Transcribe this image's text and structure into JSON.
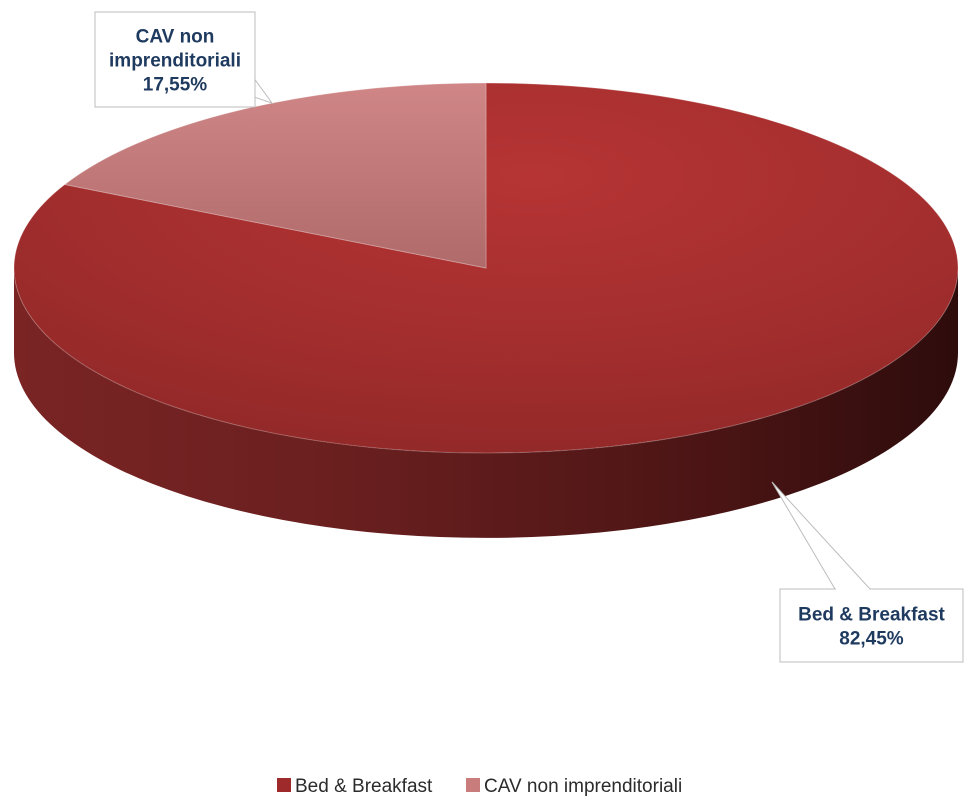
{
  "chart_data": {
    "type": "pie",
    "style": "3d",
    "categories": [
      "Bed & Breakfast",
      "CAV non imprenditoriali"
    ],
    "values": [
      82.45,
      17.55
    ],
    "unit": "%",
    "data_labels": [
      [
        "Bed & Breakfast",
        "82,45%"
      ],
      [
        "CAV non",
        "imprenditoriali",
        "17,55%"
      ]
    ],
    "colors": [
      "#9e2a2b",
      "#c97c7c"
    ],
    "legend": {
      "position": "bottom",
      "entries": [
        "Bed & Breakfast",
        "CAV non imprenditoriali"
      ]
    }
  }
}
